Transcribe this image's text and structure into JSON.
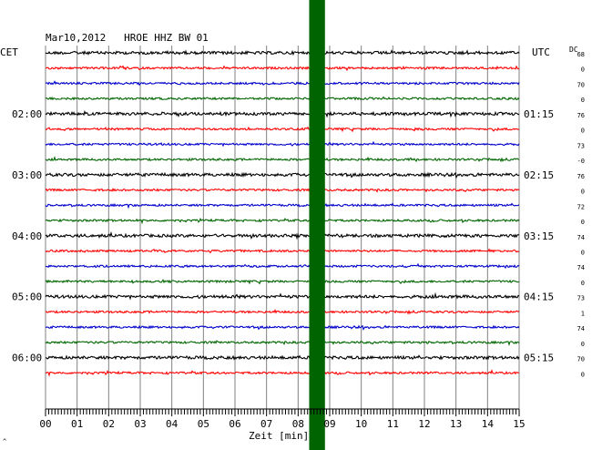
{
  "chart_data": {
    "type": "line",
    "title": "Mar10,2012   HROE HHZ BW 01",
    "left_timezone": "CET",
    "right_timezone": "UTC",
    "dc_label": "DC",
    "xlabel": "Zeit [min]",
    "xlim": [
      0,
      15
    ],
    "x_ticks": [
      "00",
      "01",
      "02",
      "03",
      "04",
      "05",
      "06",
      "07",
      "08",
      "09",
      "10",
      "11",
      "12",
      "13",
      "14",
      "15"
    ],
    "rows_per_hour": 4,
    "trace_colors": [
      "#000000",
      "#ff0000",
      "#0000cc",
      "#006600"
    ],
    "left_hour_labels": [
      {
        "row": 4,
        "label": "02:00"
      },
      {
        "row": 8,
        "label": "03:00"
      },
      {
        "row": 12,
        "label": "04:00"
      },
      {
        "row": 16,
        "label": "05:00"
      },
      {
        "row": 20,
        "label": "06:00"
      }
    ],
    "right_hour_labels": [
      {
        "row": 4,
        "label": "01:15"
      },
      {
        "row": 8,
        "label": "02:15"
      },
      {
        "row": 12,
        "label": "03:15"
      },
      {
        "row": 16,
        "label": "04:15"
      },
      {
        "row": 20,
        "label": "05:15"
      }
    ],
    "dc_offsets": [
      "68",
      "0",
      "70",
      "0",
      "76",
      "0",
      "73",
      "-0",
      "76",
      "0",
      "72",
      "0",
      "74",
      "0",
      "74",
      "0",
      "73",
      "1",
      "74",
      "0",
      "70",
      "0"
    ],
    "highlight_band": {
      "x_start_min": 8.35,
      "x_end_min": 8.85,
      "color": "#006400"
    },
    "corner_mark": "^"
  }
}
